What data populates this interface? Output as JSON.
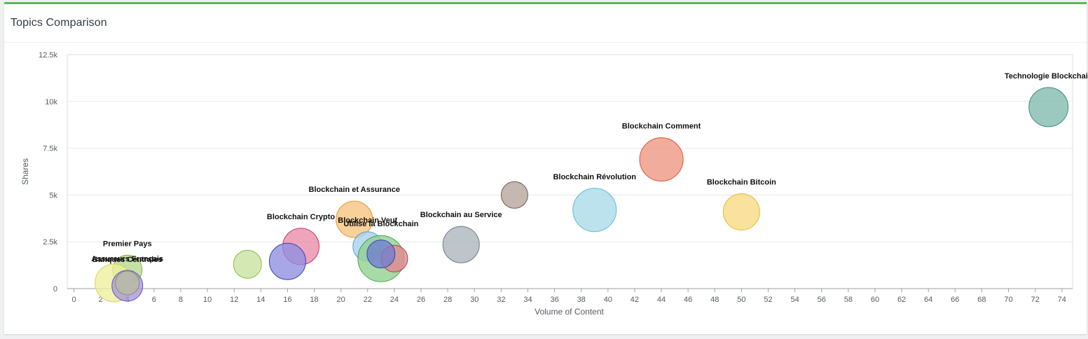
{
  "panel": {
    "title": "Topics Comparison"
  },
  "chart_data": {
    "type": "scatter",
    "title": "",
    "xlabel": "Volume of Content",
    "ylabel": "Shares",
    "xlim": [
      -0.5,
      74.8
    ],
    "ylim": [
      0,
      12500
    ],
    "x_ticks": [
      0,
      2,
      4,
      6,
      8,
      10,
      12,
      14,
      16,
      18,
      20,
      22,
      24,
      26,
      28,
      30,
      32,
      34,
      36,
      38,
      40,
      42,
      44,
      46,
      48,
      50,
      52,
      54,
      56,
      58,
      60,
      62,
      64,
      66,
      68,
      70,
      72,
      74
    ],
    "y_ticks": [
      {
        "value": 0,
        "label": "0"
      },
      {
        "value": 2500,
        "label": "2.5k"
      },
      {
        "value": 5000,
        "label": "5k"
      },
      {
        "value": 7500,
        "label": "7.5k"
      },
      {
        "value": 10000,
        "label": "10k"
      },
      {
        "value": 12500,
        "label": "12.5k"
      }
    ],
    "grid": true,
    "points": [
      {
        "x": 73,
        "y": 9700,
        "size": 28,
        "label": "Technologie Blockchain",
        "color": "#7fb9ad",
        "stroke": "#3d8c7c"
      },
      {
        "x": 44,
        "y": 6900,
        "size": 31,
        "label": "Blockchain Comment",
        "color": "#ee9580",
        "stroke": "#d9532f"
      },
      {
        "x": 39,
        "y": 4200,
        "size": 31,
        "label": "Blockchain Révolution",
        "color": "#a9dae8",
        "stroke": "#5fb9d3"
      },
      {
        "x": 50,
        "y": 4100,
        "size": 26,
        "label": "Blockchain Bitcoin",
        "color": "#f6da80",
        "stroke": "#e6b82d"
      },
      {
        "x": 33,
        "y": 5000,
        "size": 19,
        "label": "",
        "color": "#b3a49b",
        "stroke": "#6e5d54"
      },
      {
        "x": 29,
        "y": 2350,
        "size": 26,
        "label": "Blockchain au Service",
        "color": "#aab4bb",
        "stroke": "#6b7880"
      },
      {
        "x": 21,
        "y": 3700,
        "size": 26,
        "label": "Blockchain et Assurance",
        "color": "#f5c37e",
        "stroke": "#e49a2d"
      },
      {
        "x": 17,
        "y": 2250,
        "size": 26,
        "label": "Blockchain Crypto",
        "color": "#e98ba8",
        "stroke": "#c8346a"
      },
      {
        "x": 22,
        "y": 2250,
        "size": 21,
        "label": "Blockchain Veut",
        "color": "#a8cff1",
        "stroke": "#5a9bd6"
      },
      {
        "x": 23,
        "y": 1600,
        "size": 33,
        "label": "Utilise la Blockchain",
        "color": "#8fd08f",
        "stroke": "#46a746"
      },
      {
        "x": 24,
        "y": 1600,
        "size": 19,
        "label": "",
        "color": "#e4858f",
        "stroke": "#b43a47"
      },
      {
        "x": 23,
        "y": 1850,
        "size": 20,
        "label": "",
        "color": "#6f7dd1",
        "stroke": "#3443a8"
      },
      {
        "x": 16,
        "y": 1450,
        "size": 26,
        "label": "",
        "color": "#8e8ee0",
        "stroke": "#3e3eb0"
      },
      {
        "x": 13,
        "y": 1300,
        "size": 20,
        "label": "",
        "color": "#c7e19c",
        "stroke": "#8bbb41"
      },
      {
        "x": 4,
        "y": 1000,
        "size": 21,
        "label": "Premier Pays",
        "color": "#b6d98d",
        "stroke": "#7cb342"
      },
      {
        "x": 3,
        "y": 300,
        "size": 27,
        "label": "",
        "color": "#eeef9c",
        "stroke": "#d3d451"
      },
      {
        "x": 4,
        "y": 150,
        "size": 22,
        "label": "Assureurs Français",
        "color": "#a895dd",
        "stroke": "#6d55c4"
      },
      {
        "x": 4,
        "y": 300,
        "size": 17,
        "label": "Banques Centrales",
        "color": "#b9bda3",
        "stroke": "#8c9170"
      }
    ]
  }
}
